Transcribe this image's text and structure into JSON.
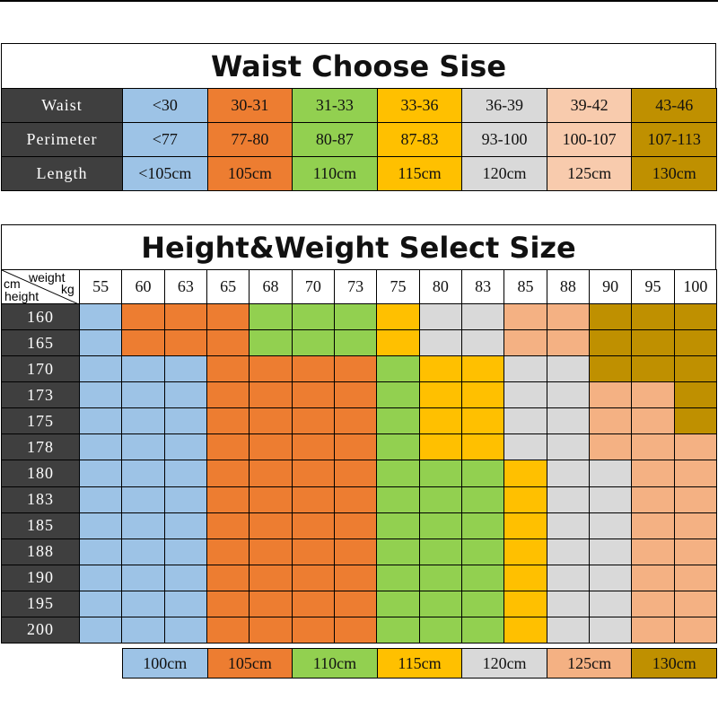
{
  "waist_table": {
    "title": "Waist Choose Sise",
    "row_labels": [
      "Waist",
      "Perimeter",
      "Length"
    ],
    "columns": [
      {
        "color": "#9dc3e6",
        "cells": [
          "<30",
          "<77",
          "<105cm"
        ]
      },
      {
        "color": "#ed7d31",
        "cells": [
          "30-31",
          "77-80",
          "105cm"
        ]
      },
      {
        "color": "#92d050",
        "cells": [
          "31-33",
          "80-87",
          "110cm"
        ]
      },
      {
        "color": "#ffc000",
        "cells": [
          "33-36",
          "87-83",
          "115cm"
        ]
      },
      {
        "color": "#d9d9d9",
        "cells": [
          "36-39",
          "93-100",
          "120cm"
        ]
      },
      {
        "color": "#f8cbad",
        "cells": [
          "39-42",
          "100-107",
          "125cm"
        ]
      },
      {
        "color": "#bf9000",
        "cells": [
          "43-46",
          "107-113",
          "130cm"
        ]
      }
    ]
  },
  "size_table": {
    "title": "Height&Weight Select Size",
    "corner": {
      "cm": "cm",
      "weight": "weight",
      "kg": "kg",
      "height": "height"
    },
    "weights": [
      55,
      60,
      63,
      65,
      68,
      70,
      73,
      75,
      80,
      83,
      85,
      88,
      90,
      95,
      100
    ],
    "heights": [
      160,
      165,
      170,
      173,
      175,
      178,
      180,
      183,
      185,
      188,
      190,
      195,
      200
    ],
    "grid": [
      [
        "#9dc3e6",
        "#ed7d31",
        "#ed7d31",
        "#ed7d31",
        "#92d050",
        "#92d050",
        "#92d050",
        "#ffc000",
        "#d9d9d9",
        "#d9d9d9",
        "#f4b183",
        "#f4b183",
        "#bf9000",
        "#bf9000",
        "#bf9000"
      ],
      [
        "#9dc3e6",
        "#ed7d31",
        "#ed7d31",
        "#ed7d31",
        "#92d050",
        "#92d050",
        "#92d050",
        "#ffc000",
        "#d9d9d9",
        "#d9d9d9",
        "#f4b183",
        "#f4b183",
        "#bf9000",
        "#bf9000",
        "#bf9000"
      ],
      [
        "#9dc3e6",
        "#9dc3e6",
        "#9dc3e6",
        "#ed7d31",
        "#ed7d31",
        "#ed7d31",
        "#ed7d31",
        "#92d050",
        "#ffc000",
        "#ffc000",
        "#d9d9d9",
        "#d9d9d9",
        "#bf9000",
        "#bf9000",
        "#bf9000"
      ],
      [
        "#9dc3e6",
        "#9dc3e6",
        "#9dc3e6",
        "#ed7d31",
        "#ed7d31",
        "#ed7d31",
        "#ed7d31",
        "#92d050",
        "#ffc000",
        "#ffc000",
        "#d9d9d9",
        "#d9d9d9",
        "#f4b183",
        "#f4b183",
        "#bf9000"
      ],
      [
        "#9dc3e6",
        "#9dc3e6",
        "#9dc3e6",
        "#ed7d31",
        "#ed7d31",
        "#ed7d31",
        "#ed7d31",
        "#92d050",
        "#ffc000",
        "#ffc000",
        "#d9d9d9",
        "#d9d9d9",
        "#f4b183",
        "#f4b183",
        "#bf9000"
      ],
      [
        "#9dc3e6",
        "#9dc3e6",
        "#9dc3e6",
        "#ed7d31",
        "#ed7d31",
        "#ed7d31",
        "#ed7d31",
        "#92d050",
        "#ffc000",
        "#ffc000",
        "#d9d9d9",
        "#d9d9d9",
        "#f4b183",
        "#f4b183",
        "#f4b183"
      ],
      [
        "#9dc3e6",
        "#9dc3e6",
        "#9dc3e6",
        "#ed7d31",
        "#ed7d31",
        "#ed7d31",
        "#ed7d31",
        "#92d050",
        "#92d050",
        "#92d050",
        "#ffc000",
        "#d9d9d9",
        "#d9d9d9",
        "#f4b183",
        "#f4b183"
      ],
      [
        "#9dc3e6",
        "#9dc3e6",
        "#9dc3e6",
        "#ed7d31",
        "#ed7d31",
        "#ed7d31",
        "#ed7d31",
        "#92d050",
        "#92d050",
        "#92d050",
        "#ffc000",
        "#d9d9d9",
        "#d9d9d9",
        "#f4b183",
        "#f4b183"
      ],
      [
        "#9dc3e6",
        "#9dc3e6",
        "#9dc3e6",
        "#ed7d31",
        "#ed7d31",
        "#ed7d31",
        "#ed7d31",
        "#92d050",
        "#92d050",
        "#92d050",
        "#ffc000",
        "#d9d9d9",
        "#d9d9d9",
        "#f4b183",
        "#f4b183"
      ],
      [
        "#9dc3e6",
        "#9dc3e6",
        "#9dc3e6",
        "#ed7d31",
        "#ed7d31",
        "#ed7d31",
        "#ed7d31",
        "#92d050",
        "#92d050",
        "#92d050",
        "#ffc000",
        "#d9d9d9",
        "#d9d9d9",
        "#f4b183",
        "#f4b183"
      ],
      [
        "#9dc3e6",
        "#9dc3e6",
        "#9dc3e6",
        "#ed7d31",
        "#ed7d31",
        "#ed7d31",
        "#ed7d31",
        "#92d050",
        "#92d050",
        "#92d050",
        "#ffc000",
        "#d9d9d9",
        "#d9d9d9",
        "#f4b183",
        "#f4b183"
      ],
      [
        "#9dc3e6",
        "#9dc3e6",
        "#9dc3e6",
        "#ed7d31",
        "#ed7d31",
        "#ed7d31",
        "#ed7d31",
        "#92d050",
        "#92d050",
        "#92d050",
        "#ffc000",
        "#d9d9d9",
        "#d9d9d9",
        "#f4b183",
        "#f4b183"
      ],
      [
        "#9dc3e6",
        "#9dc3e6",
        "#9dc3e6",
        "#ed7d31",
        "#ed7d31",
        "#ed7d31",
        "#ed7d31",
        "#92d050",
        "#92d050",
        "#92d050",
        "#ffc000",
        "#d9d9d9",
        "#d9d9d9",
        "#f4b183",
        "#f4b183"
      ]
    ],
    "legend": [
      {
        "label": "100cm",
        "color": "#9dc3e6"
      },
      {
        "label": "105cm",
        "color": "#ed7d31"
      },
      {
        "label": "110cm",
        "color": "#92d050"
      },
      {
        "label": "115cm",
        "color": "#ffc000"
      },
      {
        "label": "120cm",
        "color": "#d9d9d9"
      },
      {
        "label": "125cm",
        "color": "#f4b183"
      },
      {
        "label": "130cm",
        "color": "#bf9000"
      }
    ]
  }
}
